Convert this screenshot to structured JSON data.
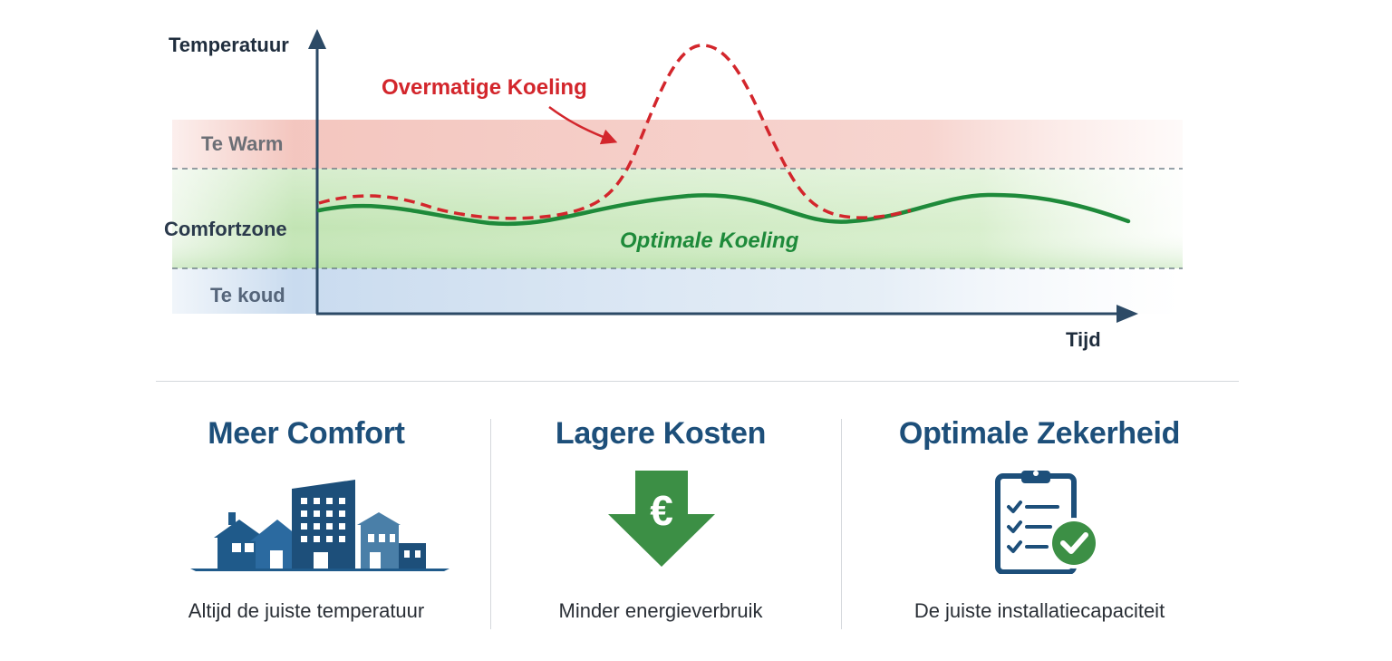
{
  "colors": {
    "warm_zone": "#f4c6c0",
    "comfort_zone": "#c9e8bf",
    "cold_zone": "#cfe0f0",
    "axis": "#2c4a66",
    "overcooling": "#d3262c",
    "optimal": "#1e8a3a",
    "title_blue": "#1d4f7a",
    "icon_blue": "#1f5a8a",
    "icon_green": "#3c8f45"
  },
  "chart": {
    "y_axis_label": "Temperatuur",
    "x_axis_label": "Tijd",
    "zones": [
      {
        "label": "Te Warm",
        "color_key": "warm_zone"
      },
      {
        "label": "Comfortzone",
        "color_key": "comfort_zone"
      },
      {
        "label": "Te koud",
        "color_key": "cold_zone"
      }
    ],
    "curve_labels": {
      "overcooling": "Overmatige Koeling",
      "optimal": "Optimale Koeling"
    }
  },
  "cards": [
    {
      "title": "Meer Comfort",
      "icon": "buildings-icon",
      "description": "Altijd de juiste temperatuur"
    },
    {
      "title": "Lagere Kosten",
      "icon": "euro-down-arrow-icon",
      "description": "Minder energieverbruik"
    },
    {
      "title": "Optimale Zekerheid",
      "icon": "clipboard-check-icon",
      "description": "De juiste installatiecapaciteit"
    }
  ]
}
